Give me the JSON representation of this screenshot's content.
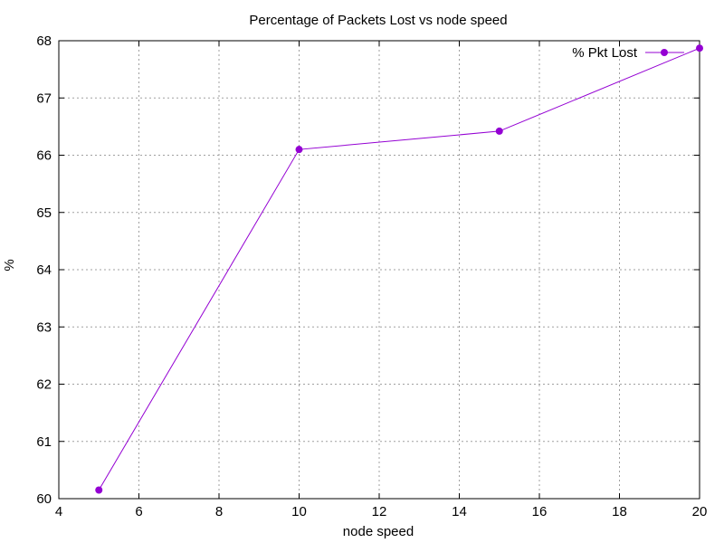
{
  "chart_data": {
    "type": "line",
    "title": "Percentage of Packets Lost vs node speed",
    "xlabel": "node speed",
    "ylabel": "%",
    "xlim": [
      4,
      20
    ],
    "ylim": [
      60,
      68
    ],
    "xticks": [
      4,
      6,
      8,
      10,
      12,
      14,
      16,
      18,
      20
    ],
    "yticks": [
      60,
      61,
      62,
      63,
      64,
      65,
      66,
      67,
      68
    ],
    "grid": true,
    "legend_position": "top-right",
    "series": [
      {
        "name": "% Pkt Lost",
        "color": "#9400d3",
        "marker": "filled-circle",
        "x": [
          5,
          10,
          15,
          20
        ],
        "y": [
          60.15,
          66.1,
          66.42,
          67.87
        ]
      }
    ]
  }
}
